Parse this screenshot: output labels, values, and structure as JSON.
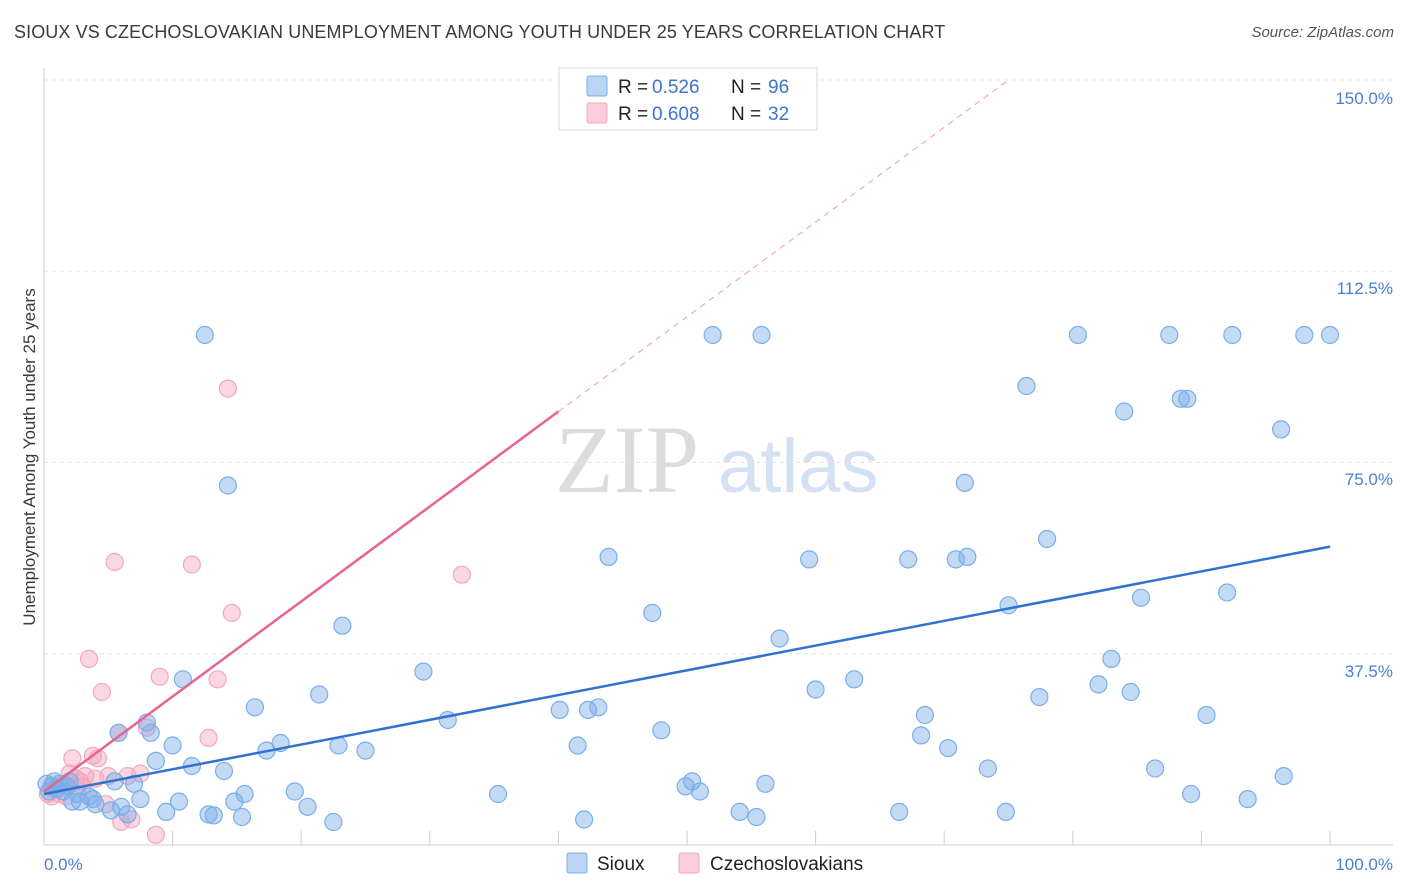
{
  "chart_data": {
    "type": "scatter",
    "title": "SIOUX VS CZECHOSLOVAKIAN UNEMPLOYMENT AMONG YOUTH UNDER 25 YEARS CORRELATION CHART",
    "source": "Source: ZipAtlas.com",
    "xlabel": "",
    "ylabel": "Unemployment Among Youth under 25 years",
    "xlim": [
      0,
      100
    ],
    "ylim": [
      0,
      150
    ],
    "x_tick_labels": [
      "0.0%",
      "100.0%"
    ],
    "y_ticks": [
      37.5,
      75.0,
      112.5,
      150.0
    ],
    "y_tick_labels": [
      "37.5%",
      "75.0%",
      "112.5%",
      "150.0%"
    ],
    "grid": true,
    "watermark": "ZIPatlas",
    "legend_position": "top-center",
    "colors": {
      "sioux": "#7aaee8",
      "sioux_line": "#2f72d0",
      "czech": "#f4a6bf",
      "czech_line": "#e6658d"
    },
    "series": [
      {
        "name": "Sioux",
        "R": "0.526",
        "N": "96",
        "trend": {
          "x0": 0,
          "y0": 10.0,
          "x1": 100,
          "y1": 58.5
        },
        "points": [
          [
            0.2,
            12.0
          ],
          [
            0.4,
            10.5
          ],
          [
            0.6,
            11.5
          ],
          [
            0.8,
            12.5
          ],
          [
            1.0,
            11.0
          ],
          [
            1.2,
            12.0
          ],
          [
            1.5,
            10.5
          ],
          [
            1.8,
            11.5
          ],
          [
            2.0,
            12.5
          ],
          [
            2.2,
            8.5
          ],
          [
            2.6,
            10.0
          ],
          [
            2.8,
            8.5
          ],
          [
            3.5,
            9.5
          ],
          [
            3.8,
            9.0
          ],
          [
            4.0,
            8.0
          ],
          [
            5.2,
            6.8
          ],
          [
            5.5,
            12.5
          ],
          [
            5.8,
            22.0
          ],
          [
            6.0,
            7.5
          ],
          [
            6.5,
            6.0
          ],
          [
            7.0,
            12.0
          ],
          [
            7.5,
            9.0
          ],
          [
            8.0,
            24.0
          ],
          [
            8.3,
            22.0
          ],
          [
            8.7,
            16.5
          ],
          [
            9.5,
            6.5
          ],
          [
            10.0,
            19.5
          ],
          [
            10.5,
            8.5
          ],
          [
            10.8,
            32.5
          ],
          [
            11.5,
            15.5
          ],
          [
            12.5,
            100.0
          ],
          [
            12.8,
            6.0
          ],
          [
            13.2,
            5.8
          ],
          [
            14.0,
            14.5
          ],
          [
            14.3,
            70.5
          ],
          [
            14.8,
            8.5
          ],
          [
            15.4,
            5.5
          ],
          [
            15.6,
            10.0
          ],
          [
            16.4,
            27.0
          ],
          [
            17.3,
            18.5
          ],
          [
            18.4,
            20.0
          ],
          [
            19.5,
            10.5
          ],
          [
            20.5,
            7.5
          ],
          [
            21.4,
            29.5
          ],
          [
            22.5,
            4.5
          ],
          [
            22.9,
            19.5
          ],
          [
            23.2,
            43.0
          ],
          [
            25.0,
            18.5
          ],
          [
            29.5,
            34.0
          ],
          [
            31.4,
            24.5
          ],
          [
            35.3,
            10.0
          ],
          [
            40.1,
            26.5
          ],
          [
            41.5,
            19.5
          ],
          [
            42.0,
            5.0
          ],
          [
            42.3,
            26.5
          ],
          [
            43.1,
            27.0
          ],
          [
            43.9,
            56.5
          ],
          [
            47.3,
            45.5
          ],
          [
            48.0,
            22.5
          ],
          [
            49.9,
            11.5
          ],
          [
            50.4,
            12.5
          ],
          [
            51.0,
            10.5
          ],
          [
            52.0,
            100.0
          ],
          [
            54.1,
            6.5
          ],
          [
            55.4,
            5.5
          ],
          [
            55.8,
            100.0
          ],
          [
            56.1,
            12.0
          ],
          [
            57.2,
            40.5
          ],
          [
            59.5,
            56.0
          ],
          [
            60.0,
            30.5
          ],
          [
            63.0,
            32.5
          ],
          [
            66.5,
            6.5
          ],
          [
            67.2,
            56.0
          ],
          [
            68.2,
            21.5
          ],
          [
            68.5,
            25.5
          ],
          [
            70.3,
            19.0
          ],
          [
            70.9,
            56.0
          ],
          [
            71.6,
            71.0
          ],
          [
            71.8,
            56.5
          ],
          [
            73.4,
            15.0
          ],
          [
            74.8,
            6.5
          ],
          [
            75.0,
            47.0
          ],
          [
            76.4,
            90.0
          ],
          [
            77.4,
            29.0
          ],
          [
            78.0,
            60.0
          ],
          [
            80.4,
            100.0
          ],
          [
            82.0,
            31.5
          ],
          [
            83.0,
            36.5
          ],
          [
            84.0,
            85.0
          ],
          [
            84.5,
            30.0
          ],
          [
            85.3,
            48.5
          ],
          [
            86.4,
            15.0
          ],
          [
            87.5,
            100.0
          ],
          [
            88.4,
            87.5
          ],
          [
            88.9,
            87.5
          ],
          [
            89.2,
            10.0
          ],
          [
            90.4,
            25.5
          ],
          [
            92.0,
            49.5
          ],
          [
            92.4,
            100.0
          ],
          [
            93.6,
            9.0
          ],
          [
            96.2,
            81.5
          ],
          [
            96.4,
            13.5
          ],
          [
            98.0,
            100.0
          ],
          [
            100.0,
            100.0
          ]
        ]
      },
      {
        "name": "Czechoslovakians",
        "R": "0.608",
        "N": "32",
        "trend": {
          "x0": 0,
          "y0": 10.5,
          "x1": 40,
          "y1": 85.0
        },
        "trend_extension": {
          "x0": 40,
          "y0": 85.0,
          "x1": 75.0,
          "y1": 150.0
        },
        "points": [
          [
            0.3,
            10.0
          ],
          [
            0.6,
            9.5
          ],
          [
            0.9,
            11.0
          ],
          [
            1.2,
            10.0
          ],
          [
            1.5,
            12.0
          ],
          [
            1.7,
            9.5
          ],
          [
            2.0,
            14.0
          ],
          [
            2.2,
            17.0
          ],
          [
            2.5,
            13.0
          ],
          [
            2.8,
            12.5
          ],
          [
            3.0,
            11.5
          ],
          [
            3.2,
            13.5
          ],
          [
            3.5,
            36.5
          ],
          [
            3.8,
            17.5
          ],
          [
            4.0,
            13.0
          ],
          [
            4.2,
            17.0
          ],
          [
            4.5,
            30.0
          ],
          [
            4.8,
            8.0
          ],
          [
            5.0,
            13.5
          ],
          [
            5.5,
            55.5
          ],
          [
            5.8,
            22.0
          ],
          [
            6.0,
            4.5
          ],
          [
            6.5,
            13.5
          ],
          [
            6.8,
            5.0
          ],
          [
            7.5,
            14.0
          ],
          [
            8.0,
            23.0
          ],
          [
            8.7,
            2.0
          ],
          [
            9.0,
            33.0
          ],
          [
            11.5,
            55.0
          ],
          [
            12.8,
            21.0
          ],
          [
            13.5,
            32.5
          ],
          [
            14.3,
            89.5
          ],
          [
            14.6,
            45.5
          ],
          [
            32.5,
            53.0
          ]
        ]
      }
    ]
  }
}
